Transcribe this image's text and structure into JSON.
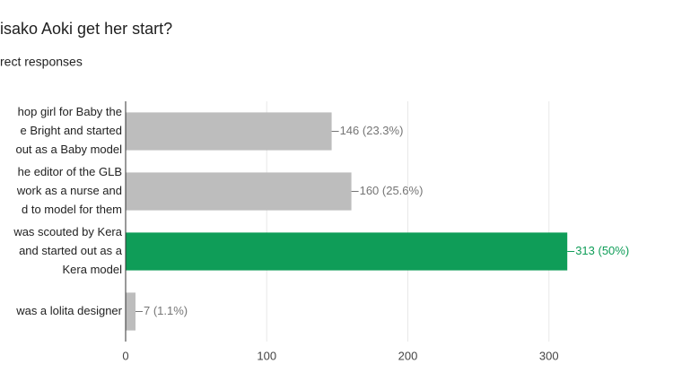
{
  "chart_data": {
    "type": "bar",
    "orientation": "horizontal",
    "title": "isako Aoki get her start?",
    "subtitle": "rect responses",
    "categories": [
      [
        "hop girl for Baby the",
        "e Bright and started",
        "out as a Baby model"
      ],
      [
        "he editor of the GLB",
        "work as a nurse and",
        "d to model for them"
      ],
      [
        "was scouted by Kera",
        "and started out as a",
        "Kera model"
      ],
      [
        "was a lolita designer"
      ]
    ],
    "values": [
      146,
      160,
      313,
      7
    ],
    "value_labels": [
      "146 (23.3%)",
      "160 (25.6%)",
      "313 (50%)",
      "7 (1.1%)"
    ],
    "colors": [
      "#bdbdbd",
      "#bdbdbd",
      "#0f9d58",
      "#bdbdbd"
    ],
    "label_colors": [
      "#757575",
      "#757575",
      "#0f9d58",
      "#757575"
    ],
    "xlim": [
      0,
      400
    ],
    "xticks": [
      0,
      100,
      200,
      300
    ],
    "grid": true
  }
}
